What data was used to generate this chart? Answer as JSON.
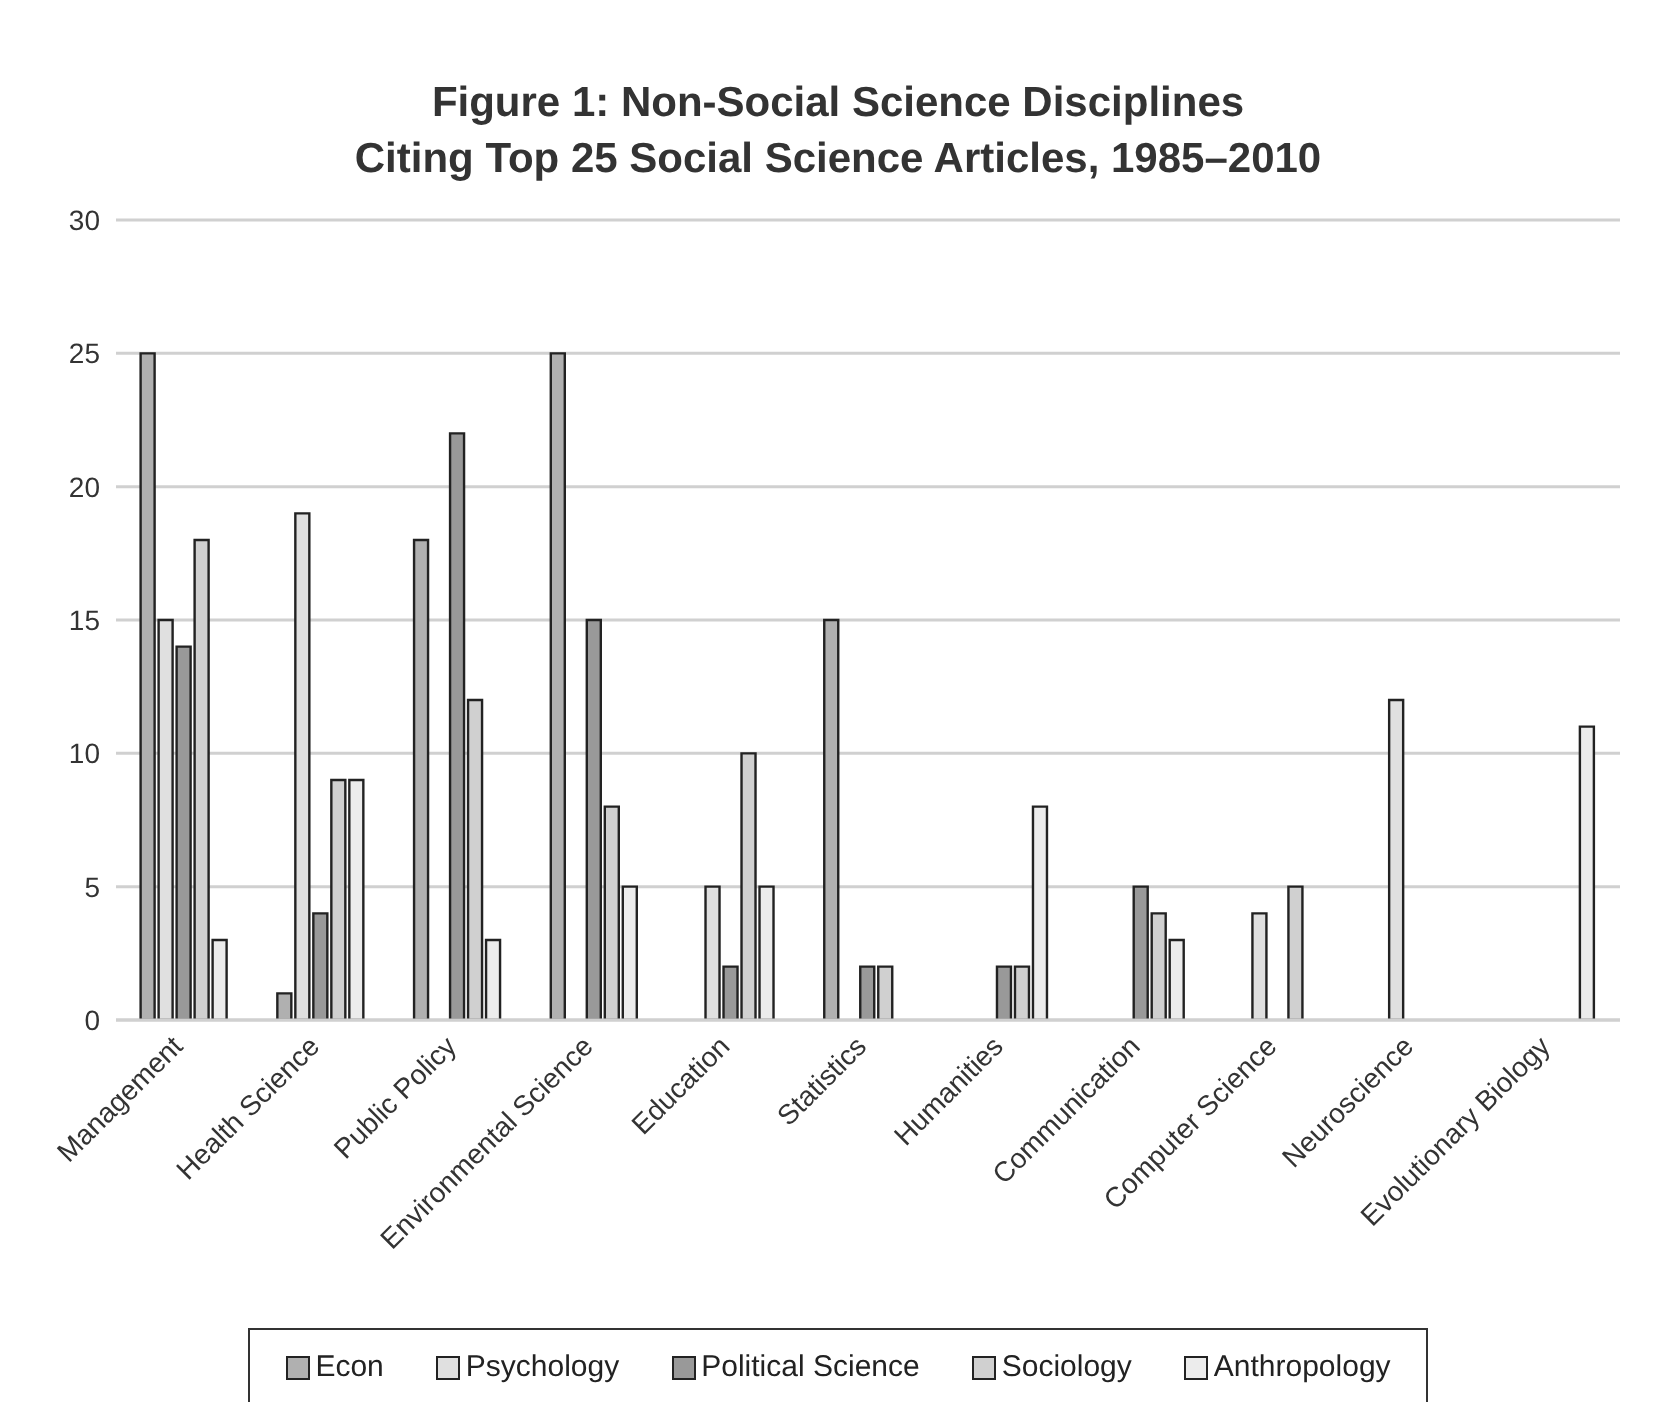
{
  "chart_data": {
    "type": "bar",
    "title": "Figure 1: Non-Social Science Disciplines\nCiting Top 25 Social Science Articles, 1985–2010",
    "categories": [
      "Management",
      "Health Science",
      "Public Policy",
      "Environmental Science",
      "Education",
      "Statistics",
      "Humanities",
      "Communication",
      "Computer Science",
      "Neuroscience",
      "Evolutionary Biology"
    ],
    "series": [
      {
        "name": "Econ",
        "color": "#b0b0b0",
        "values": [
          25,
          1,
          18,
          25,
          null,
          15,
          null,
          null,
          null,
          null,
          null
        ]
      },
      {
        "name": "Psychology",
        "color": "#e0e0e0",
        "values": [
          15,
          19,
          null,
          null,
          5,
          null,
          null,
          null,
          4,
          12,
          null
        ]
      },
      {
        "name": "Political Science",
        "color": "#999999",
        "values": [
          14,
          4,
          22,
          15,
          2,
          2,
          2,
          5,
          null,
          null,
          null
        ]
      },
      {
        "name": "Sociology",
        "color": "#d0d0d0",
        "values": [
          18,
          9,
          12,
          8,
          10,
          2,
          2,
          4,
          5,
          null,
          null
        ]
      },
      {
        "name": "Anthropology",
        "color": "#ececec",
        "values": [
          3,
          9,
          3,
          5,
          5,
          null,
          8,
          3,
          null,
          null,
          11
        ]
      }
    ],
    "ylim": [
      0,
      30
    ],
    "yticks": [
      0,
      5,
      10,
      15,
      20,
      25,
      30
    ],
    "grid": "y",
    "legend": "bottom"
  }
}
